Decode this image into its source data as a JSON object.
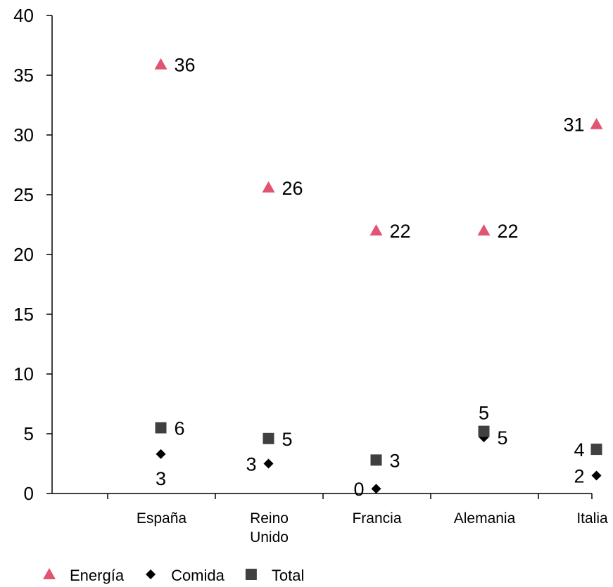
{
  "chart_data": {
    "type": "scatter",
    "categories": [
      {
        "lines": [
          "España"
        ]
      },
      {
        "lines": [
          "Reino",
          "Unido"
        ]
      },
      {
        "lines": [
          "Francia"
        ]
      },
      {
        "lines": [
          "Alemania"
        ]
      },
      {
        "lines": [
          "Italia"
        ]
      }
    ],
    "ylim": [
      0,
      40
    ],
    "yticks": [
      0,
      5,
      10,
      15,
      20,
      25,
      30,
      35,
      40
    ],
    "grid": false,
    "legend_position": "bottom-left",
    "series": [
      {
        "name": "Energía",
        "marker": "triangle",
        "color": "#E05571",
        "values": [
          35.9,
          25.6,
          22.0,
          22.0,
          30.9
        ],
        "labels": [
          "36",
          "26",
          "22",
          "22",
          "31"
        ],
        "label_pos": [
          "right",
          "right",
          "right",
          "right",
          "left"
        ]
      },
      {
        "name": "Comida",
        "marker": "diamond",
        "color": "#000000",
        "values": [
          3.3,
          2.5,
          0.4,
          4.7,
          1.5
        ],
        "labels": [
          "3",
          "3",
          "0",
          "5",
          "2"
        ],
        "label_pos": [
          "below",
          "left",
          "left",
          "right",
          "left"
        ]
      },
      {
        "name": "Total",
        "marker": "square",
        "color": "#404040",
        "values": [
          5.5,
          4.6,
          2.8,
          5.2,
          3.7
        ],
        "labels": [
          "6",
          "5",
          "3",
          "5",
          "4"
        ],
        "label_pos": [
          "right",
          "right",
          "right",
          "above",
          "left"
        ]
      }
    ]
  }
}
